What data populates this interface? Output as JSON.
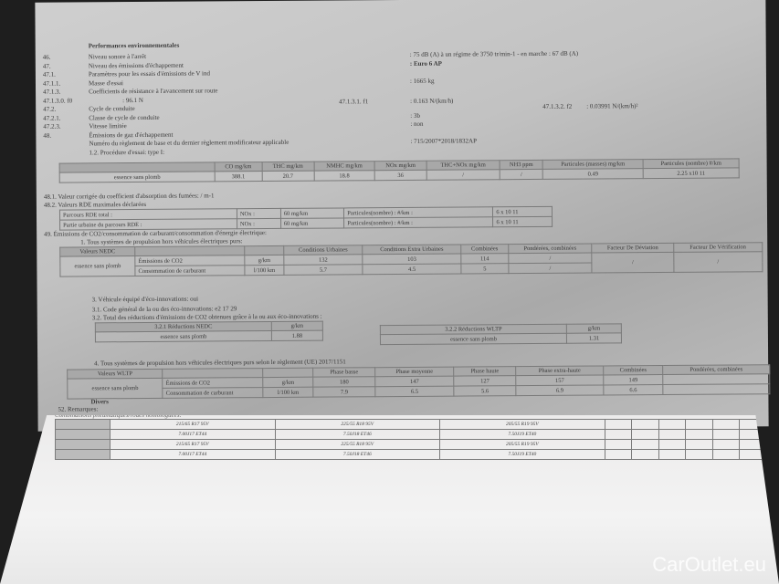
{
  "section_title": "Performances environnementales",
  "items": [
    {
      "num": "46.",
      "label": "Niveau sonore à l'arrêt",
      "value": ": 75 dB (A)  à un régime de 3750 tr/min-1 - en marche :  67 dB (A)"
    },
    {
      "num": "47.",
      "label": "Niveau des émissions d'échappement",
      "value": ": Euro 6 AP"
    },
    {
      "num": "47.1.",
      "label": "Paramètres pour les essais d'émissions de V ind",
      "value": ""
    },
    {
      "num": "47.1.1.",
      "label": "Masse d'essai",
      "value": ": 1665          kg"
    },
    {
      "num": "47.1.3.",
      "label": "Coefficients de résistance à l'avancement sur route",
      "value": ""
    },
    {
      "num": "47.1.3.0. f0",
      "label": ": 96.1 N",
      "value": ""
    },
    {
      "num": "47.2.",
      "label": "Cycle de conduite",
      "value": ""
    },
    {
      "num": "47.2.1.",
      "label": "Classe de cycle de conduite",
      "value": ": 3b"
    },
    {
      "num": "47.2.3.",
      "label": "Vitesse limitée",
      "value": ": non"
    },
    {
      "num": "48.",
      "label": "Émissions de gaz d'échappement",
      "value": ""
    },
    {
      "num": "",
      "label": "Numéro du règlement de base et du dernier règlement modificateur applicable",
      "value": ": 715/2007*2018/1832AP"
    },
    {
      "num": "",
      "label": "1.2. Procédure d'essai: type I:",
      "value": ""
    }
  ],
  "f1": {
    "label": "47.1.3.1.  f1",
    "value": ": 0.163 N/(km/h)"
  },
  "f2": {
    "label": "47.1.3.2.  f2",
    "value": ": 0.03991 N/(km/h)²"
  },
  "type1": {
    "headers": [
      "CO mg/km",
      "THC mg/km",
      "NMHC mg/km",
      "NOx mg/km",
      "THC+NOx mg/km",
      "NH3 ppm",
      "Particules (masses) mg/km",
      "Particules (nombre) #/km"
    ],
    "row": [
      "essence sans plomb",
      "388.1",
      "20.7",
      "18.8",
      "36",
      "/",
      "/",
      "0.49",
      "2.25 x10 11"
    ]
  },
  "l481": "48.1.   Valeur corrigée du coefficient d'absorption des fumées: / m-1",
  "l482": "48.2.   Valeurs RDE maximales déclarées",
  "rde": [
    [
      "Parcours RDE total :",
      "NOx :",
      "60 mg/km",
      "Particules(nombre) : #/km :",
      "6 x 10 11"
    ],
    [
      "Partie urbaine du parcours RDE   :",
      "NOx :",
      "60 mg/km",
      "Particules(nombre) : #/km :",
      "6 x 10 11"
    ]
  ],
  "l49": "49.     Émissions de CO2/consommation de carburant/consommation d'énergie électrique:",
  "l49_1": "1. Tous systèmes de propulsion hors véhicules électriques purs:",
  "nedc": {
    "headers": [
      "Valeurs NEDC",
      "",
      "",
      "Conditions Urbaines",
      "Conditions Extra Urbaines",
      "Combinées",
      "Pondérées, combinées",
      "Facteur De Déviation",
      "Facteur De Vérification"
    ],
    "fuel": "essence sans plomb",
    "rows": [
      [
        "Émissions de CO2",
        "g/km",
        "132",
        "103",
        "114",
        "/"
      ],
      [
        "Consommation de carburant",
        "l/100 km",
        "5.7",
        "4.5",
        "5",
        "/"
      ]
    ],
    "dev": "/",
    "ver": "/"
  },
  "eco": [
    "3. Véhicule équipé d'éco-innovations: oui",
    "3.1. Code général de la ou des éco-innovations: e2 17 29",
    "3.2. Total des réductions d'émissions de CO2 obtenues grâce à la ou aux éco-innovations :"
  ],
  "red_nedc": {
    "h": [
      "3.2.1 Réductions NEDC",
      "g/km"
    ],
    "r": [
      "essence sans plomb",
      "1.88"
    ]
  },
  "red_wltp": {
    "h": [
      "3.2.2 Réductions WLTP",
      "g/km"
    ],
    "r": [
      "essence sans plomb",
      "1.31"
    ]
  },
  "l4": "4. Tous systèmes de propulsion hors véhicules électriques purs selon le règlement (UE) 2017/1151",
  "wltp": {
    "headers": [
      "Valeurs WLTP",
      "",
      "",
      "Phase basse",
      "Phase moyenne",
      "Phase haute",
      "Phase extra-haute",
      "Combinées",
      "Pondérées, combinées"
    ],
    "fuel": "essence sans plomb",
    "rows": [
      [
        "Émissions de CO2",
        "g/km",
        "180",
        "147",
        "127",
        "157",
        "149",
        ""
      ],
      [
        "Consommation de carburant",
        "l/100 km",
        "7.9",
        "6.5",
        "5.6",
        "6.9",
        "6.6",
        ""
      ]
    ]
  },
  "divers": "Divers",
  "l52": "52.     Remarques:",
  "l52b": "Combinaisons pneumatiques/roues homologuées:",
  "tyres": [
    [
      "215/65 R17 95V",
      "7.00J17 ET44",
      "225/55 R18 95V",
      "7.50J18 ET46",
      "205/55 R19 95V",
      "7.50J19 ET40"
    ],
    [
      "215/65 R17 95V",
      "7.00J17 ET44",
      "225/55 R18 95V",
      "7.50J18 ET46",
      "205/55 R19 95V",
      "7.50J19 ET40"
    ]
  ],
  "watermark": "CarOutlet.eu"
}
